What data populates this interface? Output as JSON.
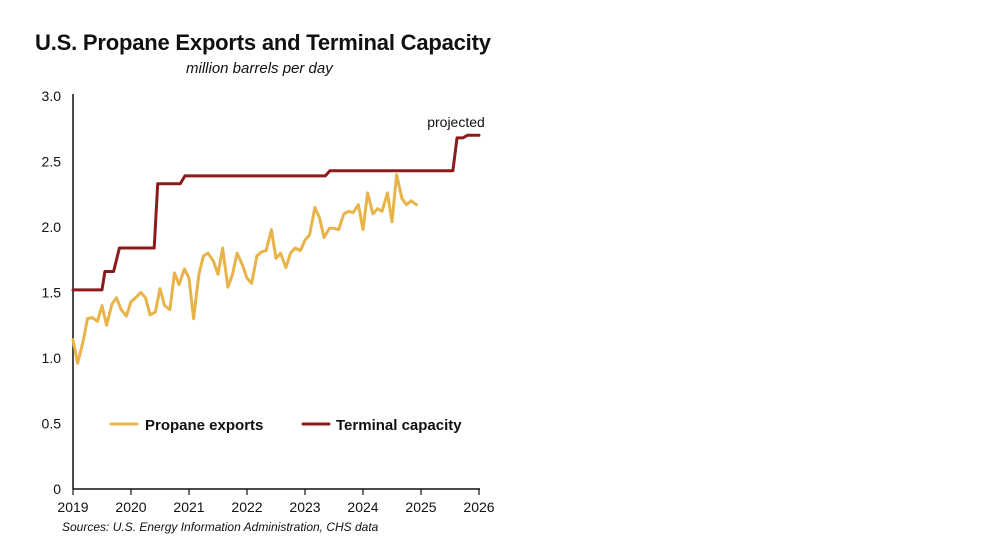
{
  "chart_data": {
    "type": "line",
    "title": "U.S. Propane Exports and Terminal Capacity",
    "subtitle": "million barrels per day",
    "source": "Sources: U.S. Energy Information Administration, CHS data",
    "annotation": "projected",
    "xlim": [
      2019,
      2026
    ],
    "ylim": [
      0,
      3.0
    ],
    "x_ticks": [
      "2019",
      "2020",
      "2021",
      "2022",
      "2023",
      "2024",
      "2025",
      "2026"
    ],
    "y_ticks": [
      "0",
      "0.5",
      "1.0",
      "1.5",
      "2.0",
      "2.5",
      "3.0"
    ],
    "legend": {
      "position": "bottom-inside"
    },
    "colors": {
      "exports": "#e8b44a",
      "capacity": "#8e1b1b",
      "axis": "#111111"
    },
    "series": [
      {
        "name": "Propane exports",
        "key": "exports",
        "x": [
          2019.0,
          2019.08,
          2019.17,
          2019.25,
          2019.33,
          2019.42,
          2019.5,
          2019.58,
          2019.67,
          2019.75,
          2019.83,
          2019.92,
          2020.0,
          2020.08,
          2020.17,
          2020.25,
          2020.33,
          2020.42,
          2020.5,
          2020.58,
          2020.67,
          2020.75,
          2020.83,
          2020.92,
          2021.0,
          2021.08,
          2021.17,
          2021.25,
          2021.33,
          2021.42,
          2021.5,
          2021.58,
          2021.67,
          2021.75,
          2021.83,
          2021.92,
          2022.0,
          2022.08,
          2022.17,
          2022.25,
          2022.33,
          2022.42,
          2022.5,
          2022.58,
          2022.67,
          2022.75,
          2022.83,
          2022.92,
          2023.0,
          2023.08,
          2023.17,
          2023.25,
          2023.33,
          2023.42,
          2023.5,
          2023.58,
          2023.67,
          2023.75,
          2023.83,
          2023.92,
          2024.0,
          2024.08,
          2024.17,
          2024.25,
          2024.33,
          2024.42,
          2024.5,
          2024.58,
          2024.67,
          2024.75,
          2024.83,
          2024.92
        ],
        "values": [
          1.14,
          0.96,
          1.12,
          1.3,
          1.31,
          1.28,
          1.4,
          1.25,
          1.41,
          1.46,
          1.37,
          1.32,
          1.43,
          1.46,
          1.5,
          1.46,
          1.33,
          1.35,
          1.53,
          1.4,
          1.37,
          1.65,
          1.56,
          1.68,
          1.61,
          1.3,
          1.64,
          1.78,
          1.8,
          1.74,
          1.64,
          1.84,
          1.54,
          1.64,
          1.8,
          1.71,
          1.61,
          1.57,
          1.78,
          1.81,
          1.82,
          1.98,
          1.76,
          1.8,
          1.69,
          1.8,
          1.84,
          1.82,
          1.9,
          1.94,
          2.15,
          2.07,
          1.92,
          1.99,
          1.99,
          1.98,
          2.1,
          2.12,
          2.11,
          2.17,
          1.98,
          2.26,
          2.1,
          2.14,
          2.12,
          2.26,
          2.04,
          2.4,
          2.22,
          2.17,
          2.2,
          2.17
        ]
      },
      {
        "name": "Terminal capacity",
        "key": "capacity",
        "x": [
          2019.0,
          2019.5,
          2019.55,
          2019.7,
          2019.8,
          2020.4,
          2020.46,
          2020.85,
          2020.93,
          2023.35,
          2023.43,
          2025.55,
          2025.62,
          2025.72,
          2025.8,
          2026.0
        ],
        "values": [
          1.52,
          1.52,
          1.66,
          1.66,
          1.84,
          1.84,
          2.33,
          2.33,
          2.39,
          2.39,
          2.43,
          2.43,
          2.68,
          2.68,
          2.7,
          2.7
        ]
      }
    ]
  }
}
